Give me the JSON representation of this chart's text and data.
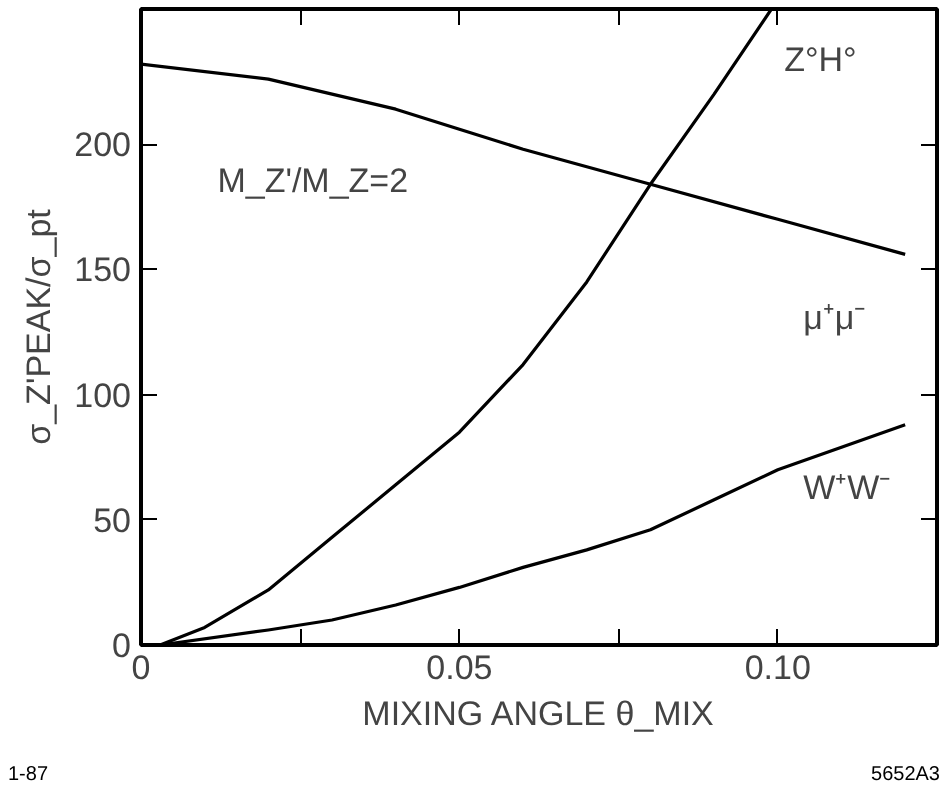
{
  "chart_data": {
    "type": "line",
    "xlabel": "MIXING ANGLE θ_MIX",
    "ylabel": "σ_Z'PEAK/σ_pt",
    "annotations": [
      "M_Z'/M_Z=2",
      "1-87",
      "5652A3"
    ],
    "xlim": [
      0,
      0.125
    ],
    "ylim": [
      0,
      254
    ],
    "xticks": [
      0,
      {
        "value": 0.025,
        "label": null
      },
      0.05,
      {
        "value": 0.075,
        "label": null
      },
      {
        "value": 0.1,
        "label": "0.10"
      }
    ],
    "yticks": [
      0,
      50,
      100,
      150,
      200
    ],
    "grid": false,
    "series": [
      {
        "name": "Z°H°",
        "color": "#000000",
        "x": [
          0,
          0.003,
          0.01,
          0.02,
          0.03,
          0.04,
          0.05,
          0.06,
          0.07,
          0.08,
          0.09,
          0.099
        ],
        "values": [
          0,
          0,
          7,
          22,
          43,
          64,
          85,
          112,
          145,
          184,
          220,
          254
        ]
      },
      {
        "name": "μ⁺μ⁻",
        "color": "#000000",
        "x": [
          0,
          0.02,
          0.04,
          0.05,
          0.06,
          0.08,
          0.1,
          0.12
        ],
        "values": [
          232,
          226,
          214,
          206,
          198,
          184,
          170,
          156
        ]
      },
      {
        "name": "W⁺W⁻",
        "color": "#000000",
        "x": [
          0,
          0.003,
          0.02,
          0.03,
          0.04,
          0.05,
          0.06,
          0.07,
          0.08,
          0.09,
          0.1,
          0.11,
          0.12
        ],
        "values": [
          0,
          0,
          6,
          10,
          16,
          23,
          31,
          38,
          46,
          58,
          70,
          79,
          88
        ]
      }
    ]
  }
}
